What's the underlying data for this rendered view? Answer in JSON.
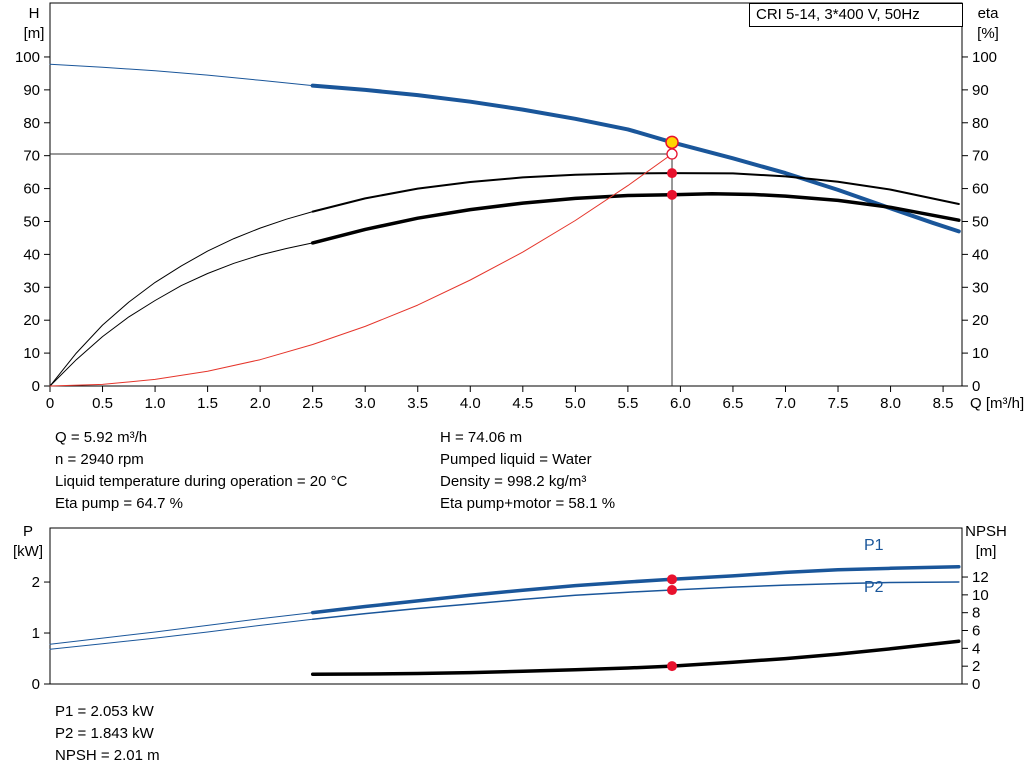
{
  "title_box": {
    "label": "CRI 5-14, 3*400 V, 50Hz"
  },
  "colors": {
    "blue": "#1a569a",
    "black": "#000000",
    "red": "#e5352b",
    "marker_red": "#e8112d",
    "marker_yellow": "#ffd400",
    "white": "#ffffff"
  },
  "info_panel": {
    "left": [
      "Q = 5.92 m³/h",
      "n = 2940 rpm",
      "Liquid temperature during operation = 20 °C",
      "Eta pump = 64.7 %"
    ],
    "right": [
      "H = 74.06 m",
      "Pumped liquid = Water",
      "Density = 998.2 kg/m³",
      "Eta pump+motor = 58.1 %"
    ]
  },
  "result_panel": [
    "P1 = 2.053 kW",
    "P2 = 1.843 kW",
    "NPSH = 2.01 m"
  ],
  "chart_data": [
    {
      "type": "line",
      "name": "h-q-chart",
      "title": "CRI 5-14, 3*400 V, 50Hz",
      "xlabel": "Q [m³/h]",
      "ylabel_left_lines": [
        "H",
        "[m]"
      ],
      "ylabel_right_lines": [
        "eta",
        "[%]"
      ],
      "xlim": [
        0,
        8.68
      ],
      "ylim_left": [
        0,
        116.4
      ],
      "ylim_right": [
        0,
        116.4
      ],
      "x_ticks": [
        0,
        0.5,
        1,
        1.5,
        2,
        2.5,
        3,
        3.5,
        4,
        4.5,
        5,
        5.5,
        6,
        6.5,
        7,
        7.5,
        8,
        8.5
      ],
      "x_tick_labels": [
        "0",
        "0.5",
        "1.0",
        "1.5",
        "2.0",
        "2.5",
        "3.0",
        "3.5",
        "4.0",
        "4.5",
        "5.0",
        "5.5",
        "6.0",
        "6.5",
        "7.0",
        "7.5",
        "8.0",
        "8.5"
      ],
      "y_ticks_left": [
        0,
        10,
        20,
        30,
        40,
        50,
        60,
        70,
        80,
        90,
        100
      ],
      "y_ticks_right": [
        0,
        10,
        20,
        30,
        40,
        50,
        60,
        70,
        80,
        90,
        100
      ],
      "grid": false,
      "guides": {
        "h_line": {
          "y": 70.5,
          "x_from": 0,
          "x_to": 5.92
        },
        "v_line": {
          "x": 5.92,
          "y_from": 0,
          "y_to": 74.06
        }
      },
      "series": [
        {
          "name": "head-curve-thin",
          "axis": "left",
          "color": "blue",
          "width": 1,
          "points": [
            [
              0,
              97.8
            ],
            [
              0.5,
              96.9
            ],
            [
              1,
              95.8
            ],
            [
              1.5,
              94.5
            ],
            [
              2,
              92.9
            ],
            [
              2.5,
              91.3
            ]
          ]
        },
        {
          "name": "head-curve",
          "axis": "left",
          "color": "blue",
          "width": 4,
          "points": [
            [
              2.5,
              91.3
            ],
            [
              3,
              90.0
            ],
            [
              3.5,
              88.4
            ],
            [
              4,
              86.4
            ],
            [
              4.5,
              84.0
            ],
            [
              5,
              81.2
            ],
            [
              5.5,
              78.0
            ],
            [
              5.92,
              74.06
            ],
            [
              6.5,
              69.2
            ],
            [
              7,
              64.7
            ],
            [
              7.5,
              59.6
            ],
            [
              8,
              54.0
            ],
            [
              8.4,
              49.6
            ],
            [
              8.65,
              47.0
            ]
          ]
        },
        {
          "name": "eta-pump-curve-thin",
          "axis": "right",
          "color": "black",
          "width": 1,
          "points": [
            [
              0,
              0
            ],
            [
              0.25,
              10
            ],
            [
              0.5,
              18.5
            ],
            [
              0.75,
              25.5
            ],
            [
              1,
              31.5
            ],
            [
              1.25,
              36.5
            ],
            [
              1.5,
              41
            ],
            [
              1.75,
              44.8
            ],
            [
              2,
              48
            ],
            [
              2.25,
              50.7
            ],
            [
              2.5,
              53
            ]
          ]
        },
        {
          "name": "eta-pump-curve",
          "axis": "right",
          "color": "black",
          "width": 2,
          "points": [
            [
              2.5,
              53
            ],
            [
              3,
              57
            ],
            [
              3.5,
              60
            ],
            [
              4,
              62
            ],
            [
              4.5,
              63.4
            ],
            [
              5,
              64.2
            ],
            [
              5.5,
              64.6
            ],
            [
              5.92,
              64.7
            ],
            [
              6.5,
              64.6
            ],
            [
              7,
              63.7
            ],
            [
              7.5,
              62.1
            ],
            [
              8,
              59.7
            ],
            [
              8.65,
              55.3
            ]
          ]
        },
        {
          "name": "eta-pump-motor-curve-thin",
          "axis": "right",
          "color": "black",
          "width": 1,
          "points": [
            [
              0,
              0
            ],
            [
              0.25,
              8
            ],
            [
              0.5,
              15
            ],
            [
              0.75,
              21
            ],
            [
              1,
              26
            ],
            [
              1.25,
              30.5
            ],
            [
              1.5,
              34.2
            ],
            [
              1.75,
              37.3
            ],
            [
              2,
              39.8
            ],
            [
              2.25,
              41.8
            ],
            [
              2.5,
              43.5
            ]
          ]
        },
        {
          "name": "eta-pump-motor-curve",
          "axis": "right",
          "color": "black",
          "width": 3.5,
          "points": [
            [
              2.5,
              43.5
            ],
            [
              3,
              47.6
            ],
            [
              3.5,
              51
            ],
            [
              4,
              53.6
            ],
            [
              4.5,
              55.6
            ],
            [
              5,
              57
            ],
            [
              5.5,
              57.9
            ],
            [
              5.92,
              58.1
            ],
            [
              6.3,
              58.4
            ],
            [
              6.7,
              58.2
            ],
            [
              7,
              57.7
            ],
            [
              7.5,
              56.4
            ],
            [
              8,
              54.3
            ],
            [
              8.65,
              50.4
            ]
          ]
        },
        {
          "name": "system-curve",
          "axis": "left",
          "color": "red",
          "width": 1,
          "points": [
            [
              0,
              0
            ],
            [
              0.5,
              0.5
            ],
            [
              1,
              2.0
            ],
            [
              1.5,
              4.5
            ],
            [
              2,
              8.0
            ],
            [
              2.5,
              12.6
            ],
            [
              3,
              18.1
            ],
            [
              3.5,
              24.6
            ],
            [
              4,
              32.2
            ],
            [
              4.5,
              40.7
            ],
            [
              5,
              50.3
            ],
            [
              5.5,
              60.9
            ],
            [
              5.92,
              70.5
            ]
          ]
        }
      ],
      "markers": [
        {
          "name": "requested-duty-point",
          "shape": "ring",
          "x": 5.92,
          "y": 70.5,
          "axis": "left",
          "r": 5,
          "fill": "white",
          "stroke": "marker_red",
          "sw": 1.3
        },
        {
          "name": "eta-pump-duty-point",
          "shape": "dot",
          "x": 5.92,
          "y": 64.7,
          "axis": "right",
          "r": 5,
          "fill": "marker_red"
        },
        {
          "name": "eta-pump-motor-duty-point",
          "shape": "dot",
          "x": 5.92,
          "y": 58.1,
          "axis": "right",
          "r": 5,
          "fill": "marker_red"
        },
        {
          "name": "actual-duty-point",
          "shape": "dot",
          "x": 5.92,
          "y": 74.06,
          "axis": "left",
          "r": 6,
          "fill": "marker_yellow",
          "stroke": "marker_red",
          "sw": 1.5
        }
      ]
    },
    {
      "type": "line",
      "name": "power-npsh-chart",
      "xlabel": "",
      "ylabel_left_lines": [
        "P",
        "[kW]"
      ],
      "ylabel_right_lines": [
        "NPSH",
        "[m]"
      ],
      "xlim": [
        0,
        8.68
      ],
      "ylim_left": [
        0,
        3.06
      ],
      "ylim_right": [
        0,
        17.5
      ],
      "y_ticks_left": [
        0,
        1,
        2
      ],
      "y_ticks_right": [
        0,
        2,
        4,
        6,
        8,
        10,
        12
      ],
      "grid": false,
      "curve_labels": [
        {
          "text": "P1"
        },
        {
          "text": "P2"
        }
      ],
      "series": [
        {
          "name": "p1-curve-thin",
          "axis": "left",
          "color": "blue",
          "width": 1,
          "points": [
            [
              0,
              0.78
            ],
            [
              0.5,
              0.9
            ],
            [
              1,
              1.02
            ],
            [
              1.5,
              1.15
            ],
            [
              2,
              1.28
            ],
            [
              2.5,
              1.4
            ]
          ]
        },
        {
          "name": "p1-curve",
          "axis": "left",
          "color": "blue",
          "width": 3.5,
          "points": [
            [
              2.5,
              1.4
            ],
            [
              3,
              1.52
            ],
            [
              3.5,
              1.63
            ],
            [
              4,
              1.74
            ],
            [
              4.5,
              1.84
            ],
            [
              5,
              1.93
            ],
            [
              5.5,
              2.0
            ],
            [
              5.92,
              2.053
            ],
            [
              6.5,
              2.12
            ],
            [
              7,
              2.19
            ],
            [
              7.5,
              2.24
            ],
            [
              8,
              2.27
            ],
            [
              8.65,
              2.3
            ]
          ]
        },
        {
          "name": "p2-curve-thin",
          "axis": "left",
          "color": "blue",
          "width": 1,
          "points": [
            [
              0,
              0.68
            ],
            [
              0.5,
              0.79
            ],
            [
              1,
              0.9
            ],
            [
              1.5,
              1.02
            ],
            [
              2,
              1.15
            ],
            [
              2.5,
              1.27
            ]
          ]
        },
        {
          "name": "p2-curve",
          "axis": "left",
          "color": "blue",
          "width": 1.5,
          "points": [
            [
              2.5,
              1.27
            ],
            [
              3,
              1.38
            ],
            [
              3.5,
              1.48
            ],
            [
              4,
              1.57
            ],
            [
              4.5,
              1.66
            ],
            [
              5,
              1.74
            ],
            [
              5.5,
              1.8
            ],
            [
              5.92,
              1.843
            ],
            [
              6.5,
              1.9
            ],
            [
              7,
              1.94
            ],
            [
              7.5,
              1.97
            ],
            [
              8,
              1.99
            ],
            [
              8.65,
              2.0
            ]
          ]
        },
        {
          "name": "npsh-curve",
          "axis": "right",
          "color": "black",
          "width": 3.5,
          "points": [
            [
              2.5,
              1.1
            ],
            [
              3,
              1.12
            ],
            [
              3.5,
              1.18
            ],
            [
              4,
              1.28
            ],
            [
              4.5,
              1.42
            ],
            [
              5,
              1.6
            ],
            [
              5.5,
              1.8
            ],
            [
              5.92,
              2.01
            ],
            [
              6.5,
              2.45
            ],
            [
              7,
              2.85
            ],
            [
              7.5,
              3.35
            ],
            [
              8,
              3.95
            ],
            [
              8.65,
              4.8
            ]
          ]
        }
      ],
      "markers": [
        {
          "name": "p1-duty-point",
          "shape": "dot",
          "x": 5.92,
          "y": 2.053,
          "axis": "left",
          "r": 5,
          "fill": "marker_red"
        },
        {
          "name": "p2-duty-point",
          "shape": "dot",
          "x": 5.92,
          "y": 1.843,
          "axis": "left",
          "r": 5,
          "fill": "marker_red"
        },
        {
          "name": "npsh-duty-point",
          "shape": "dot",
          "x": 5.92,
          "y": 2.01,
          "axis": "right",
          "r": 5,
          "fill": "marker_red"
        }
      ]
    }
  ]
}
